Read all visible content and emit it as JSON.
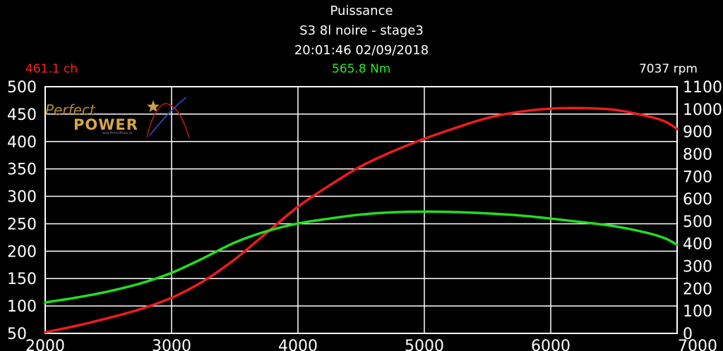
{
  "header": {
    "title": "Puissance",
    "subtitle": "S3 8l noire - stage3",
    "timestamp": "20:01:46 02/09/2018"
  },
  "readouts": {
    "power": "461.1 ch",
    "torque": "565.8 Nm",
    "rpm": "7037 rpm"
  },
  "logo": {
    "text_top": "Perfect",
    "text_bottom": "POWER",
    "url": "www.PerfectPower.ch"
  },
  "colors": {
    "background": "#000000",
    "grid": "#ffffff",
    "power": "#ee1c1c",
    "torque": "#22dd22"
  },
  "chart_data": {
    "type": "line",
    "x": [
      2000,
      2250,
      2500,
      2750,
      3000,
      3250,
      3500,
      3750,
      4000,
      4250,
      4500,
      4750,
      5000,
      5250,
      5500,
      5750,
      6000,
      6250,
      6500,
      6750,
      6900,
      7000
    ],
    "xlim": [
      2000,
      7000
    ],
    "x_ticks": [
      2000,
      3000,
      4000,
      5000,
      6000,
      7000
    ],
    "ylim_left": [
      50,
      500
    ],
    "y_ticks_left": [
      50,
      100,
      150,
      200,
      250,
      300,
      350,
      400,
      450,
      500
    ],
    "ylim_right": [
      0,
      1100
    ],
    "y_ticks_right": [
      0,
      100,
      200,
      300,
      400,
      500,
      600,
      700,
      800,
      900,
      1000,
      1100
    ],
    "grid": true,
    "series": [
      {
        "axis": "left",
        "color": "#ee1c1c",
        "values": [
          52,
          64,
          78,
          94,
          115,
          145,
          185,
          233,
          281,
          320,
          355,
          382,
          405,
          425,
          443,
          454,
          460,
          461,
          458,
          447,
          437,
          423
        ]
      },
      {
        "axis": "right",
        "color": "#22dd22",
        "values": [
          138,
          160,
          187,
          222,
          270,
          335,
          405,
          455,
          490,
          512,
          530,
          540,
          543,
          541,
          535,
          526,
          512,
          496,
          478,
          450,
          425,
          395
        ]
      }
    ]
  }
}
